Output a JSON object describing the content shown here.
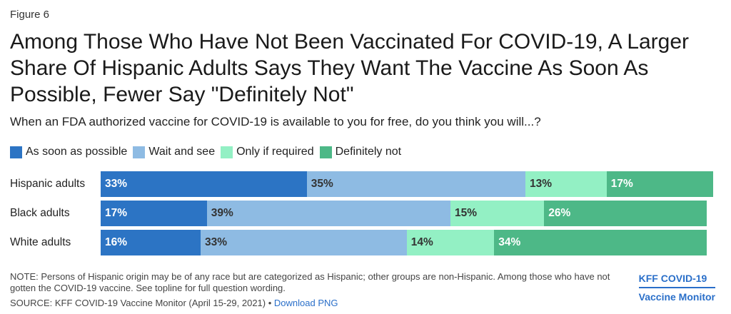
{
  "figure_label": "Figure 6",
  "chart_data": {
    "type": "bar",
    "orientation": "horizontal",
    "stacked": true,
    "title": "Among Those Who Have Not Been Vaccinated For COVID-19, A Larger Share Of Hispanic Adults Says They Want The Vaccine As Soon As Possible, Fewer Say \"Definitely Not\"",
    "subtitle": "When an FDA authorized vaccine for COVID-19 is available to you for free, do you think you will...?",
    "categories": [
      "Hispanic adults",
      "Black adults",
      "White adults"
    ],
    "series": [
      {
        "name": "As soon as possible",
        "color": "#2c74c4",
        "label_color": "light",
        "values": [
          33,
          17,
          16
        ]
      },
      {
        "name": "Wait and see",
        "color": "#8ebbe3",
        "label_color": "dark",
        "values": [
          35,
          39,
          33
        ]
      },
      {
        "name": "Only if required",
        "color": "#93f0c4",
        "label_color": "dark",
        "values": [
          13,
          15,
          14
        ]
      },
      {
        "name": "Definitely not",
        "color": "#4db887",
        "label_color": "light",
        "values": [
          17,
          26,
          34
        ]
      }
    ],
    "value_suffix": "%",
    "xlim": [
      0,
      100
    ],
    "grid": false,
    "legend_position": "top-left"
  },
  "note": "NOTE: Persons of Hispanic origin may be of any race but are categorized as Hispanic; other groups are non-Hispanic. Among those who have not gotten the COVID-19 vaccine. See topline for full question wording.",
  "source": {
    "text": "SOURCE: KFF COVID-19 Vaccine Monitor (April 15-29, 2021) •",
    "link": "Download PNG"
  },
  "brand": {
    "line1": "KFF COVID-19",
    "line2": "Vaccine Monitor"
  }
}
